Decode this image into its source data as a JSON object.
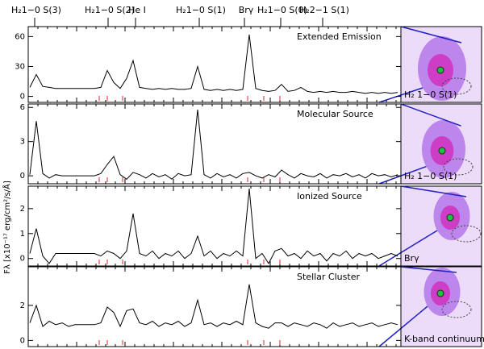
{
  "line_labels": [
    "H₂1−0 S(3)",
    "H₂1−0 S(2)",
    "He I",
    "H₂1−0 S(1)",
    "Brγ",
    "H₂1−0 S(0)",
    "H₂2−1 S(1)"
  ],
  "y_label": "Fλ [x10⁻¹⁷ erg/cm²/s/Å]",
  "chart_data": [
    {
      "type": "line",
      "title": "Extended Emission",
      "image_label": "H₂ 1−0 S(1)",
      "color": "#000000",
      "ylim": [
        -6,
        70
      ],
      "yticks": [
        0,
        30,
        60
      ],
      "values": [
        9,
        22,
        10,
        9,
        8,
        8,
        8,
        8,
        8,
        8,
        8,
        9,
        26,
        14,
        8,
        18,
        36,
        9,
        8,
        7,
        8,
        7,
        8,
        7,
        7,
        8,
        30,
        7,
        6,
        7,
        6,
        7,
        6,
        7,
        62,
        8,
        6,
        5,
        6,
        12,
        5,
        6,
        9,
        5,
        4,
        5,
        4,
        5,
        4,
        4,
        5,
        4,
        3,
        4,
        3,
        4,
        3,
        4
      ]
    },
    {
      "type": "line",
      "title": "Molecular Source",
      "image_label": "H₂ 1−0 S(1)",
      "color": "#000000",
      "ylim": [
        -0.7,
        6.3
      ],
      "yticks": [
        0,
        3,
        6
      ],
      "values": [
        0.1,
        4.8,
        0.2,
        -0.2,
        0.1,
        0,
        0,
        0,
        0,
        0,
        0,
        0.2,
        1.0,
        1.7,
        0.1,
        -0.3,
        0.3,
        0.1,
        -0.2,
        0.2,
        -0.1,
        0.1,
        -0.3,
        0.2,
        0,
        0.1,
        5.8,
        0.1,
        -0.2,
        0.2,
        -0.1,
        0.1,
        -0.2,
        0.2,
        0.3,
        0,
        -0.2,
        0.1,
        -0.1,
        0.5,
        0.1,
        -0.2,
        0.2,
        0,
        -0.1,
        0.2,
        -0.2,
        0.1,
        0,
        0.2,
        -0.1,
        0.1,
        -0.2,
        0.2,
        0,
        0.1,
        -0.1,
        0.1
      ]
    },
    {
      "type": "line",
      "title": "Ionized Source",
      "image_label": "Brγ",
      "color": "#000000",
      "ylim": [
        -0.3,
        2.9
      ],
      "yticks": [
        0,
        1,
        2
      ],
      "values": [
        0.2,
        1.2,
        0.1,
        -0.2,
        0.2,
        0.2,
        0.2,
        0.2,
        0.2,
        0.2,
        0.2,
        0.1,
        0.3,
        0.2,
        0.0,
        0.3,
        1.8,
        0.2,
        0.1,
        0.3,
        0.0,
        0.2,
        0.1,
        0.3,
        0.0,
        0.2,
        0.9,
        0.1,
        0.3,
        0.0,
        0.2,
        0.1,
        0.3,
        0.1,
        2.8,
        0.0,
        0.2,
        -0.2,
        0.3,
        0.4,
        0.1,
        0.2,
        0.0,
        0.3,
        0.1,
        0.2,
        -0.1,
        0.2,
        0.1,
        0.3,
        0.0,
        0.2,
        0.1,
        0.2,
        0.0,
        0.1,
        0.2,
        0.1
      ]
    },
    {
      "type": "line",
      "title": "Stellar Cluster",
      "image_label": "K-band continuum",
      "color": "#000000",
      "ylim": [
        -0.35,
        4.2
      ],
      "yticks": [
        0,
        2
      ],
      "values": [
        1.0,
        2.0,
        0.8,
        1.1,
        0.9,
        1.0,
        0.8,
        0.9,
        0.9,
        0.9,
        0.9,
        1.0,
        1.9,
        1.6,
        0.8,
        1.7,
        1.8,
        1.0,
        0.9,
        1.1,
        0.8,
        1.0,
        0.9,
        1.1,
        0.8,
        1.0,
        2.3,
        0.9,
        1.0,
        0.8,
        1.0,
        0.9,
        1.1,
        0.9,
        3.2,
        1.0,
        0.8,
        0.7,
        1.0,
        1.0,
        0.8,
        1.0,
        0.9,
        0.8,
        1.0,
        0.9,
        0.7,
        1.0,
        0.8,
        0.9,
        1.0,
        0.8,
        0.9,
        1.0,
        0.8,
        0.9,
        1.0,
        0.9
      ]
    }
  ]
}
